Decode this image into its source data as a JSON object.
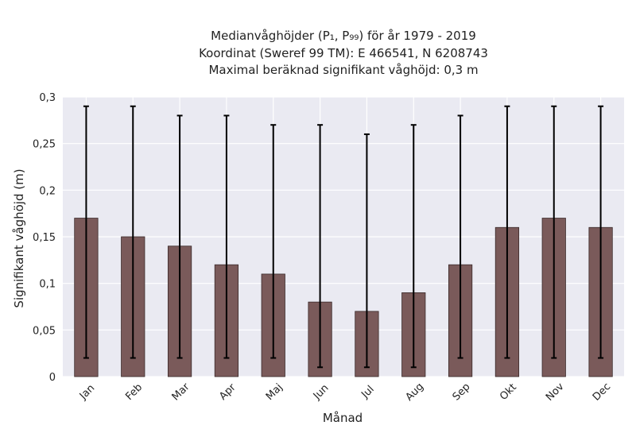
{
  "chart_data": {
    "type": "bar",
    "title_lines": [
      "Medianvåghöjder (P₁, P₉₉) för år 1979 - 2019",
      "Koordinat (Sweref 99 TM): E 466541, N 6208743",
      "Maximal beräknad signifikant våghöjd: 0,3 m"
    ],
    "xlabel": "Månad",
    "ylabel": "Signifikant våghöjd (m)",
    "ylim": [
      0,
      0.3
    ],
    "yticks": [
      0,
      0.05,
      0.1,
      0.15,
      0.2,
      0.25,
      0.3
    ],
    "ytick_labels": [
      "0",
      "0,05",
      "0,1",
      "0,15",
      "0,2",
      "0,25",
      "0,3"
    ],
    "categories": [
      "Jan",
      "Feb",
      "Mar",
      "Apr",
      "Maj",
      "Jun",
      "Jul",
      "Aug",
      "Sep",
      "Okt",
      "Nov",
      "Dec"
    ],
    "values": [
      0.17,
      0.15,
      0.14,
      0.12,
      0.11,
      0.08,
      0.07,
      0.09,
      0.12,
      0.16,
      0.17,
      0.16
    ],
    "error_low": [
      0.02,
      0.02,
      0.02,
      0.02,
      0.02,
      0.01,
      0.01,
      0.01,
      0.02,
      0.02,
      0.02,
      0.02
    ],
    "error_high": [
      0.29,
      0.29,
      0.28,
      0.28,
      0.27,
      0.27,
      0.26,
      0.27,
      0.28,
      0.29,
      0.29,
      0.29
    ],
    "grid": true,
    "colors": {
      "bar": "#7a5a5a",
      "bar_edge": "#3a2a2a",
      "plot_bg": "#eaeaf2",
      "grid": "#ffffff",
      "errorbar": "#000000"
    }
  }
}
